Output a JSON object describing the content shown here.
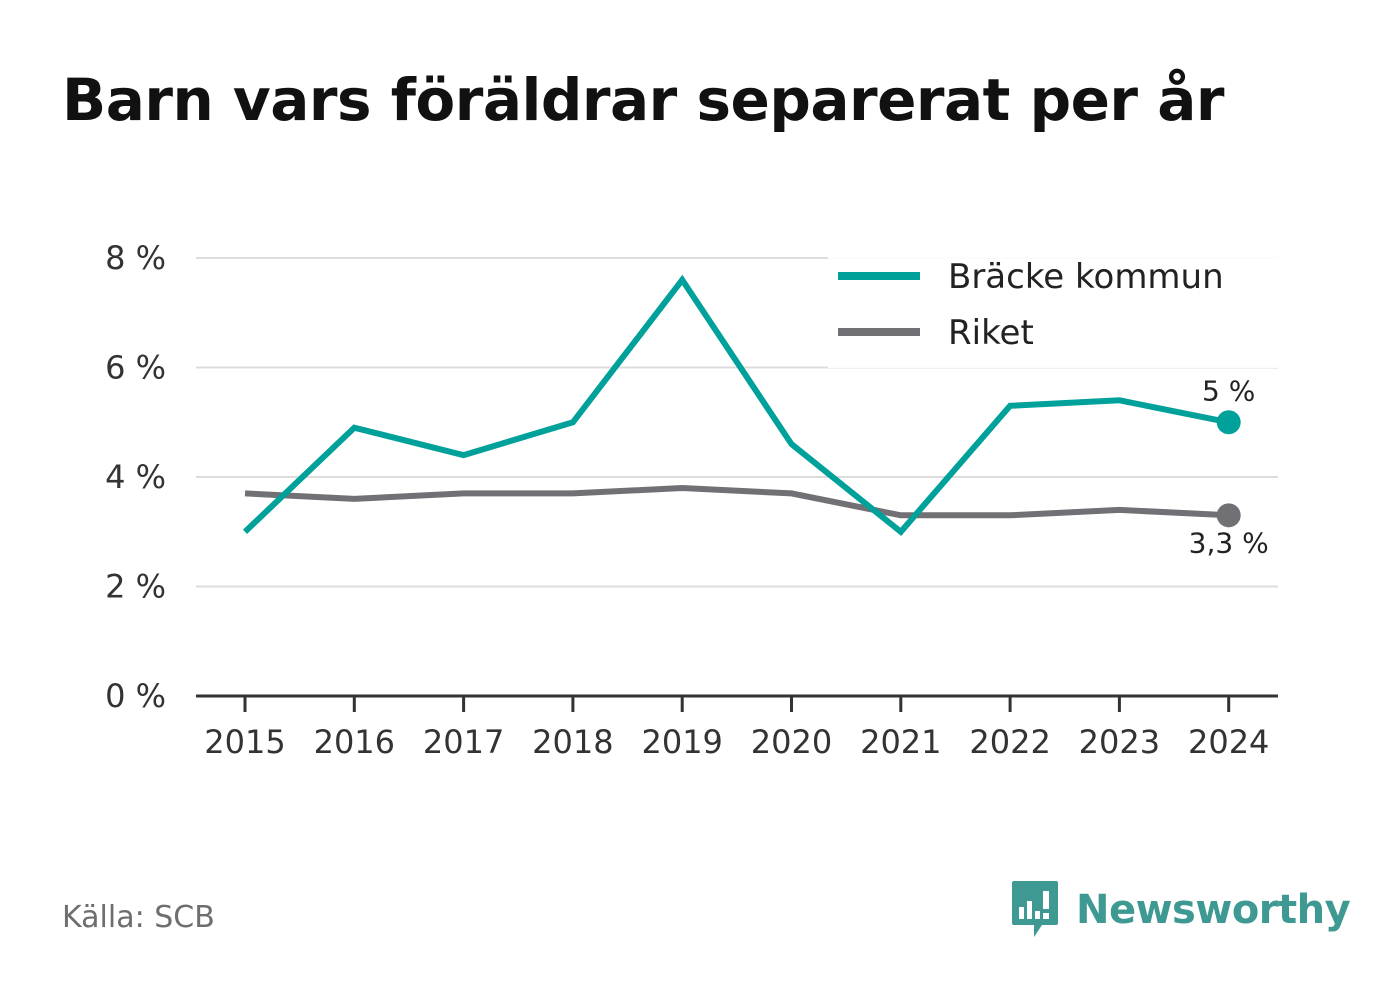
{
  "source": "Källa: SCB",
  "brand": {
    "name": "Newsworthy",
    "icon": "newsworthy-logo-icon",
    "color": "#3d9991"
  },
  "chart_data": {
    "type": "line",
    "title": "Barn vars föräldrar separerat per år",
    "x": [
      "2015",
      "2016",
      "2017",
      "2018",
      "2019",
      "2020",
      "2021",
      "2022",
      "2023",
      "2024"
    ],
    "y_ticks": [
      "0 %",
      "2 %",
      "4 %",
      "6 %",
      "8 %"
    ],
    "ylim": [
      0,
      8
    ],
    "grid": true,
    "legend_position": "top-right",
    "series": [
      {
        "name": "Bräcke kommun",
        "color": "#00a19a",
        "values": [
          3.0,
          4.9,
          4.4,
          5.0,
          7.6,
          4.6,
          3.0,
          5.3,
          5.4,
          5.0
        ],
        "end_label": "5 %"
      },
      {
        "name": "Riket",
        "color": "#717074",
        "values": [
          3.7,
          3.6,
          3.7,
          3.7,
          3.8,
          3.7,
          3.3,
          3.3,
          3.4,
          3.3
        ],
        "end_label": "3,3 %"
      }
    ]
  }
}
